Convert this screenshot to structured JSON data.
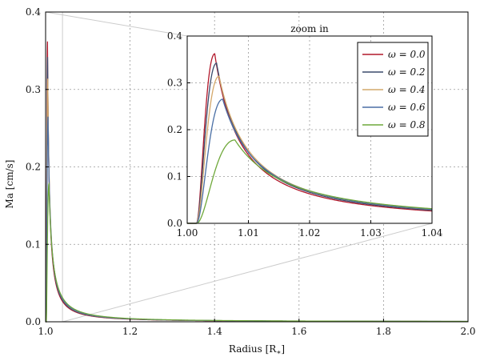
{
  "chart_data": {
    "type": "line",
    "ylabel": "Ma [cm/s]",
    "xlabel": "Radius [R",
    "xlabel_sub": "∗",
    "xlabel_close": "]",
    "xlim": [
      1.0,
      2.0
    ],
    "ylim": [
      0.0,
      0.4
    ],
    "xticks": [
      "1.0",
      "1.2",
      "1.4",
      "1.6",
      "1.8",
      "2.0"
    ],
    "yticks": [
      "0.0",
      "0.1",
      "0.2",
      "0.3",
      "0.4"
    ],
    "grid": true,
    "series": [
      {
        "name": "ω = 0.0",
        "color": "#b2182b",
        "peak_x": 1.0045,
        "peak_y": 0.362
      },
      {
        "name": "ω = 0.2",
        "color": "#3a4a6b",
        "peak_x": 1.0048,
        "peak_y": 0.342
      },
      {
        "name": "ω = 0.4",
        "color": "#d4a86a",
        "peak_x": 1.0052,
        "peak_y": 0.314
      },
      {
        "name": "ω = 0.6",
        "color": "#4a6fa5",
        "peak_x": 1.0058,
        "peak_y": 0.265
      },
      {
        "name": "ω = 0.8",
        "color": "#6fa83a",
        "peak_x": 1.0078,
        "peak_y": 0.178
      }
    ],
    "inset": {
      "title": "zoom in",
      "xlim": [
        1.0,
        1.04
      ],
      "ylim": [
        0.0,
        0.4
      ],
      "xticks": [
        "1.00",
        "1.01",
        "1.02",
        "1.03",
        "1.04"
      ],
      "yticks": [
        "0.0",
        "0.1",
        "0.2",
        "0.3",
        "0.4"
      ],
      "legend_position": "top-right"
    }
  }
}
